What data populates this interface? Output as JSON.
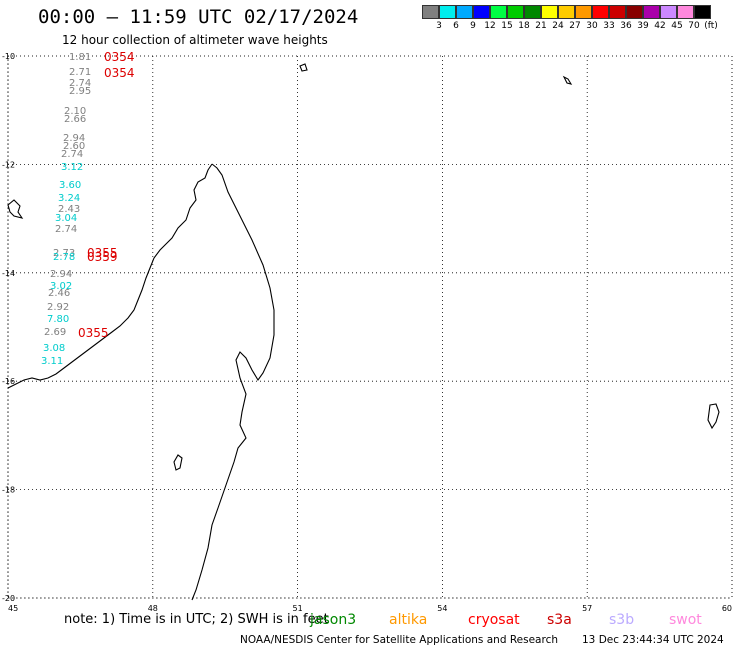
{
  "header": {
    "title": "00:00 – 11:59 UTC 02/17/2024",
    "subtitle": "12 hour collection of altimeter wave heights"
  },
  "legend": {
    "colors": [
      "#808080",
      "#00eeee",
      "#00aaff",
      "#0000ff",
      "#00ff44",
      "#00cc00",
      "#008800",
      "#ffff00",
      "#ffcc00",
      "#ff9900",
      "#ff0000",
      "#cc0000",
      "#880000",
      "#aa00aa",
      "#cc88ff",
      "#ff88dd",
      "#000000"
    ],
    "labels": [
      "3",
      "6",
      "9",
      "12",
      "15",
      "18",
      "21",
      "24",
      "27",
      "30",
      "33",
      "36",
      "39",
      "42",
      "45",
      "70",
      "(ft)"
    ]
  },
  "map": {
    "lon_ticks": [
      "45",
      "48",
      "51",
      "54",
      "57",
      "60"
    ],
    "lat_ticks": [
      "-10",
      "-12",
      "-14",
      "-16",
      "-18",
      "-20"
    ],
    "lon_range": [
      45,
      60
    ],
    "lat_range": [
      -20,
      -10
    ],
    "grid": "dotted"
  },
  "observations": [
    {
      "text": "1.81",
      "color": "#808080"
    },
    {
      "text": "2.71",
      "color": "#808080"
    },
    {
      "text": "2.74",
      "color": "#808080"
    },
    {
      "text": "2.95",
      "color": "#808080"
    },
    {
      "text": "2.10",
      "color": "#808080"
    },
    {
      "text": "2.66",
      "color": "#808080"
    },
    {
      "text": "2.94",
      "color": "#808080"
    },
    {
      "text": "2.60",
      "color": "#808080"
    },
    {
      "text": "2.74",
      "color": "#808080"
    },
    {
      "text": "3.12",
      "color": "#00cccc"
    },
    {
      "text": "3.60",
      "color": "#00cccc"
    },
    {
      "text": "3.24",
      "color": "#00cccc"
    },
    {
      "text": "2.43",
      "color": "#808080"
    },
    {
      "text": "3.04",
      "color": "#00cccc"
    },
    {
      "text": "2.74",
      "color": "#808080"
    },
    {
      "text": "2.73",
      "color": "#808080"
    },
    {
      "text": "2.78",
      "color": "#00cccc"
    },
    {
      "text": "2.94",
      "color": "#808080"
    },
    {
      "text": "3.02",
      "color": "#00cccc"
    },
    {
      "text": "2.46",
      "color": "#808080"
    },
    {
      "text": "2.92",
      "color": "#808080"
    },
    {
      "text": "7.80",
      "color": "#00cccc"
    },
    {
      "text": "2.69",
      "color": "#808080"
    },
    {
      "text": "3.08",
      "color": "#00cccc"
    },
    {
      "text": "3.11",
      "color": "#00cccc"
    }
  ],
  "time_labels": [
    "0354",
    "0354",
    "0355",
    "0359",
    "0355"
  ],
  "footer": {
    "note": "note: 1) Time is in UTC; 2) SWH is in feet",
    "satellites": [
      {
        "name": "jason3",
        "color": "#008800"
      },
      {
        "name": "altika",
        "color": "#ff9900"
      },
      {
        "name": "cryosat",
        "color": "#ff0000"
      },
      {
        "name": "s3a",
        "color": "#cc0000"
      },
      {
        "name": "s3b",
        "color": "#bbaaff"
      },
      {
        "name": "swot",
        "color": "#ff88dd"
      }
    ],
    "credit": "NOAA/NESDIS Center for Satellite Applications and Research",
    "generated": "13 Dec 23:44:34 UTC 2024"
  }
}
